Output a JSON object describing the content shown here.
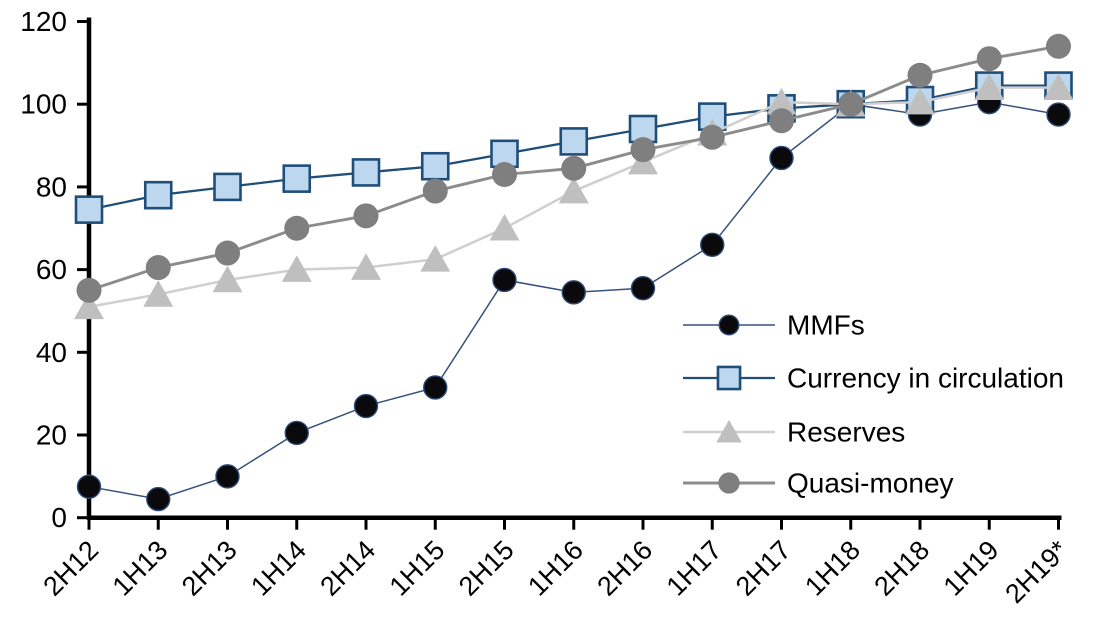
{
  "chart_data": {
    "type": "line",
    "title": "",
    "xlabel": "",
    "ylabel": "",
    "ylim": [
      0,
      120
    ],
    "yticks": [
      0,
      20,
      40,
      60,
      80,
      100,
      120
    ],
    "grid": false,
    "legend_position": "inside-right",
    "axis_color": "#000000",
    "background_color": "#ffffff",
    "categories": [
      "2H12",
      "1H13",
      "2H13",
      "1H14",
      "2H14",
      "1H15",
      "2H15",
      "1H16",
      "2H16",
      "1H17",
      "2H17",
      "1H18",
      "2H18",
      "1H19",
      "2H19*"
    ],
    "series": [
      {
        "name": "MMFs",
        "marker": "circle",
        "marker_fill": "#0a0a0c",
        "marker_stroke": "#2e4a7a",
        "line_color": "#35517e",
        "values": [
          7.5,
          4.5,
          10,
          20.5,
          27,
          31.5,
          57.5,
          54.5,
          55.5,
          66,
          87,
          100,
          97.5,
          100.5,
          97.5
        ]
      },
      {
        "name": "Currency in circulation",
        "marker": "square",
        "marker_fill": "#bdd7ee",
        "marker_stroke": "#1f4e79",
        "line_color": "#1f4e79",
        "values": [
          74.5,
          78,
          80,
          82,
          83.5,
          85,
          88,
          91,
          94,
          97,
          99,
          100,
          101,
          104.5,
          104.5
        ]
      },
      {
        "name": "Reserves",
        "marker": "triangle",
        "marker_fill": "#bfbfbf",
        "marker_stroke": "none",
        "line_color": "#d0cece",
        "values": [
          51,
          54,
          57.5,
          60,
          60.5,
          62.5,
          70,
          79,
          86,
          93,
          100.5,
          100,
          100.5,
          104,
          104
        ]
      },
      {
        "name": "Quasi-money",
        "marker": "circle",
        "marker_fill": "#7f7f7f",
        "marker_stroke": "none",
        "line_color": "#8c8c8c",
        "values": [
          55,
          60.5,
          64,
          70,
          73,
          79,
          83,
          84.5,
          89,
          92,
          96,
          100,
          107,
          111,
          114
        ]
      }
    ]
  }
}
